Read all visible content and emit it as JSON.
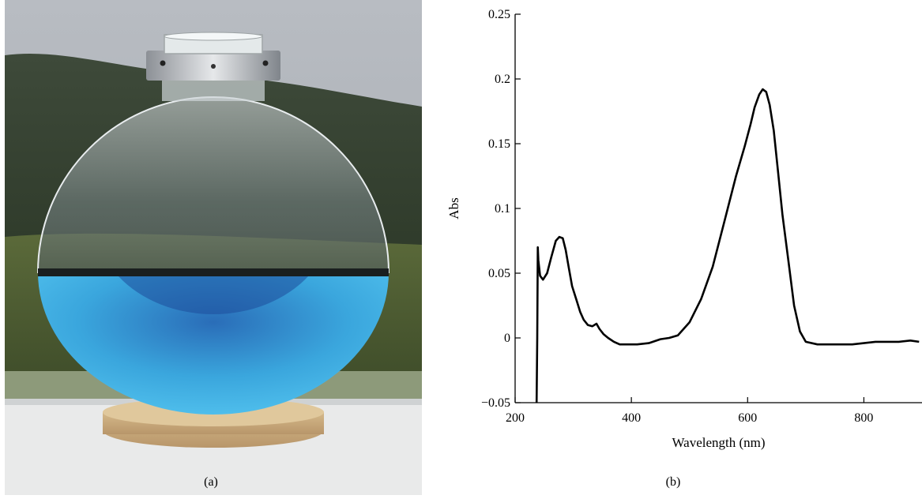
{
  "panels": {
    "a": {
      "caption": "(a)"
    },
    "b": {
      "caption": "(b)"
    }
  },
  "photo": {
    "liquid_color": "#39aee0",
    "base_color": "#c9a878"
  },
  "chart_data": {
    "type": "line",
    "xlabel": "Wavelength (nm)",
    "ylabel": "Abs",
    "xlim": [
      200,
      900
    ],
    "ylim": [
      -0.05,
      0.25
    ],
    "x_ticks": [
      200,
      400,
      600,
      800
    ],
    "x_tick_labels": [
      "200",
      "400",
      "600",
      "800"
    ],
    "y_ticks": [
      -0.05,
      0,
      0.05,
      0.1,
      0.15,
      0.2,
      0.25
    ],
    "y_tick_labels": [
      "−0.05",
      "0",
      "0.05",
      "0.1",
      "0.15",
      "0.2",
      "0.25"
    ],
    "grid": false,
    "series": [
      {
        "color": "#000000",
        "x": [
          237,
          238,
          239,
          240,
          243,
          248,
          255,
          262,
          270,
          276,
          282,
          287,
          292,
          298,
          305,
          312,
          318,
          325,
          333,
          340,
          345,
          352,
          360,
          370,
          380,
          395,
          410,
          430,
          450,
          465,
          480,
          500,
          520,
          540,
          560,
          580,
          595,
          605,
          612,
          620,
          626,
          632,
          638,
          645,
          652,
          660,
          670,
          680,
          690,
          700,
          720,
          740,
          760,
          780,
          800,
          820,
          840,
          860,
          880,
          895
        ],
        "y": [
          -0.05,
          0.0,
          0.07,
          0.06,
          0.048,
          0.045,
          0.05,
          0.062,
          0.075,
          0.078,
          0.077,
          0.068,
          0.055,
          0.04,
          0.03,
          0.02,
          0.014,
          0.01,
          0.009,
          0.011,
          0.007,
          0.003,
          0.0,
          -0.003,
          -0.005,
          -0.005,
          -0.005,
          -0.004,
          -0.001,
          0.0,
          0.002,
          0.012,
          0.03,
          0.055,
          0.09,
          0.125,
          0.148,
          0.165,
          0.178,
          0.188,
          0.192,
          0.19,
          0.18,
          0.16,
          0.13,
          0.095,
          0.06,
          0.025,
          0.005,
          -0.003,
          -0.005,
          -0.005,
          -0.005,
          -0.005,
          -0.004,
          -0.003,
          -0.003,
          -0.003,
          -0.002,
          -0.003
        ]
      }
    ]
  }
}
